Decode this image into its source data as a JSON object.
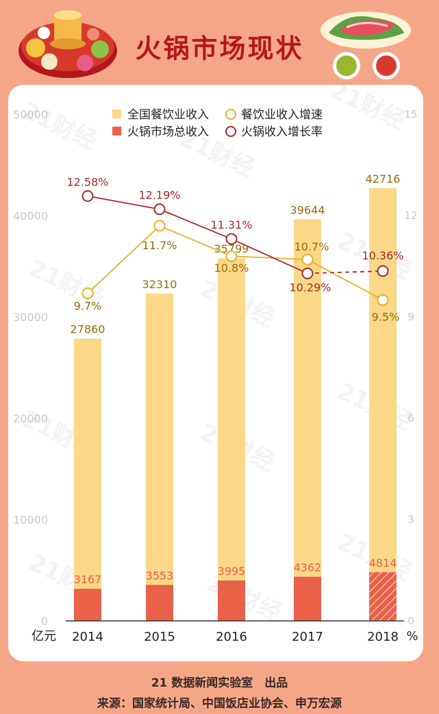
{
  "title": "火锅市场现状",
  "footer": {
    "credit": "21 数据新闻实验室　出品",
    "source": "来源：国家统计局、中国饭店业协会、申万宏源"
  },
  "watermark": "21财经",
  "colors": {
    "background": "#f6a688",
    "title": "#b3171d",
    "bar_total": "#fad888",
    "bar_hotpot": "#ea6149",
    "line_catering": "#e7b022",
    "line_hotpot": "#a52a2a",
    "label_catering": "#9a6a0a",
    "label_hotpot": "#a52a2a",
    "axis_text": "#c8c8c8"
  },
  "icons": {
    "left_decoration": "hotpot-icon",
    "right_decoration": "meat-plate-icon"
  },
  "chart_data": {
    "type": "bar",
    "categories": [
      "2014",
      "2015",
      "2016",
      "2017",
      "2018"
    ],
    "xlabel_left": "亿元",
    "xlabel_right": "%",
    "y_left": {
      "ticks": [
        0,
        10000,
        20000,
        30000,
        40000,
        50000
      ],
      "lim": [
        0,
        50000
      ]
    },
    "y_right": {
      "ticks": [
        0,
        3,
        6,
        9,
        12,
        15
      ],
      "lim": [
        0,
        15
      ]
    },
    "legend_position": "top-center",
    "series": [
      {
        "name": "全国餐饮业收入",
        "kind": "bar",
        "values": [
          27860,
          32310,
          35799,
          39644,
          42716
        ],
        "labels": [
          "27860",
          "32310",
          "35799",
          "39644",
          "42716"
        ]
      },
      {
        "name": "火锅市场总收入",
        "kind": "bar",
        "values": [
          3167,
          3553,
          3995,
          4362,
          4814
        ],
        "labels": [
          "3167",
          "3553",
          "3995",
          "4362",
          "4814"
        ],
        "estimated_last": true
      },
      {
        "name": "餐饮业收入增速",
        "kind": "line",
        "axis": "right",
        "values": [
          9.7,
          11.7,
          10.8,
          10.7,
          9.5
        ],
        "labels": [
          "9.7%",
          "11.7%",
          "10.8%",
          "10.7%",
          "9.5%"
        ]
      },
      {
        "name": "火锅收入增长率",
        "kind": "line",
        "axis": "right",
        "values": [
          12.58,
          12.19,
          11.31,
          10.29,
          10.36
        ],
        "labels": [
          "12.58%",
          "12.19%",
          "11.31%",
          "10.29%",
          "10.36%"
        ],
        "dashed_last_segment": true
      }
    ]
  }
}
